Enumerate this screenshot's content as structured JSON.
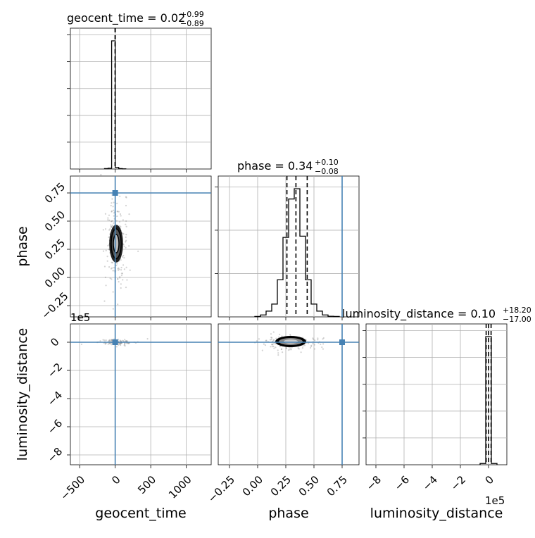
{
  "chart_data": {
    "type": "corner",
    "parameters": [
      "geocent_time",
      "phase",
      "luminosity_distance"
    ],
    "axis_labels": {
      "geocent_time": "geocent_time",
      "phase": "phase",
      "luminosity_distance": "luminosity_distance"
    },
    "titles": {
      "geocent_time": {
        "label": "geocent_time = 0.02",
        "plus": "+0.99",
        "minus": "−0.89"
      },
      "phase": {
        "label": "phase = 0.34",
        "plus": "+0.10",
        "minus": "−0.08"
      },
      "luminosity_distance": {
        "label": "luminosity_distance = 0.10",
        "plus": "+18.20",
        "minus": "−17.00"
      }
    },
    "ranges": {
      "geocent_time": [
        -630,
        1350
      ],
      "phase": [
        -0.35,
        0.9
      ],
      "luminosity_distance": [
        -8.7,
        1.3
      ]
    },
    "ticks": {
      "geocent_time": {
        "values": [
          -500,
          0,
          500,
          1000
        ],
        "labels": [
          "−500",
          "0",
          "500",
          "1000"
        ]
      },
      "phase": {
        "values": [
          -0.25,
          0.0,
          0.25,
          0.5,
          0.75
        ],
        "labels": [
          "−0.25",
          "0.00",
          "0.25",
          "0.50",
          "0.75"
        ]
      },
      "luminosity_distance": {
        "values": [
          -8,
          -6,
          -4,
          -2,
          0
        ],
        "labels": [
          "−8",
          "−6",
          "−4",
          "−2",
          "0"
        ]
      }
    },
    "offset_text": {
      "luminosity_distance_x": "1e5",
      "luminosity_distance_y": "1e5"
    },
    "truths": {
      "geocent_time": 0,
      "phase": 0.75,
      "luminosity_distance": 0
    },
    "quantiles": {
      "geocent_time": [
        -0.87,
        0.02,
        1.01
      ],
      "phase": [
        0.26,
        0.34,
        0.44
      ],
      "luminosity_distance": [
        -0.17,
        0.0,
        0.18
      ]
    },
    "histograms": {
      "geocent_time": {
        "edges": [
          -150,
          -100,
          -50,
          0,
          50,
          100,
          150
        ],
        "counts": [
          0.3,
          0.6,
          98,
          1.2,
          0.3,
          0.1
        ]
      },
      "phase": {
        "edges": [
          -0.025,
          0.025,
          0.075,
          0.125,
          0.175,
          0.225,
          0.275,
          0.325,
          0.375,
          0.425,
          0.475,
          0.525,
          0.575,
          0.625,
          0.675,
          0.725
        ],
        "counts": [
          0.3,
          1.5,
          4.5,
          10,
          29,
          62,
          92,
          100,
          63,
          29,
          10,
          4.5,
          1.5,
          0.5,
          0.3
        ]
      },
      "luminosity_distance": {
        "edges": [
          -0.6,
          -0.2,
          0.2,
          0.6
        ],
        "counts": [
          1,
          100,
          1
        ]
      }
    },
    "grid": true
  }
}
